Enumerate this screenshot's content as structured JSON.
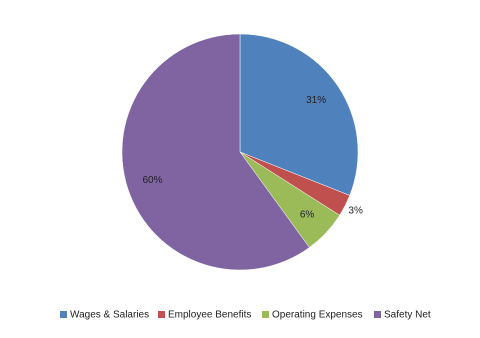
{
  "chart_data": {
    "type": "pie",
    "categories": [
      "Wages & Salaries",
      "Employee Benefits",
      "Operating Expenses",
      "Safety Net"
    ],
    "values": [
      31,
      3,
      6,
      60
    ],
    "value_labels": [
      "31%",
      "3%",
      "6%",
      "60%"
    ],
    "colors": [
      "#4f81bd",
      "#c0504d",
      "#9bbb59",
      "#8064a2"
    ],
    "legend": "bottom"
  }
}
